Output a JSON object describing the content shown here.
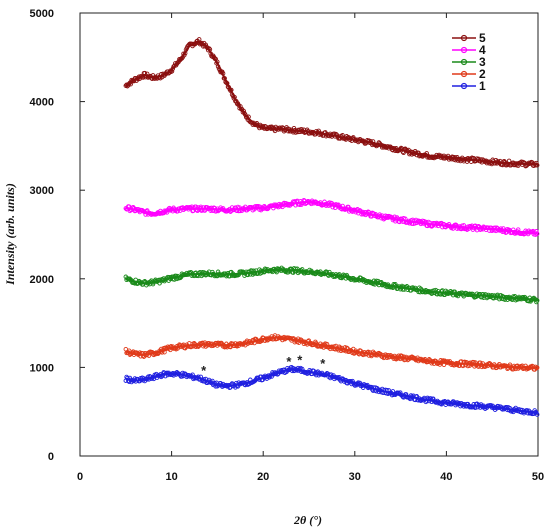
{
  "chart_data": {
    "type": "line",
    "title": "",
    "xlabel": "2θ (°)",
    "ylabel": "Intensity (arb. units)",
    "xlim": [
      0,
      50
    ],
    "ylim": [
      0,
      5000
    ],
    "x_ticks": [
      "0",
      "10",
      "20",
      "30",
      "40",
      "50"
    ],
    "y_ticks": [
      "0",
      "1000",
      "2000",
      "3000",
      "4000",
      "5000"
    ],
    "grid": false,
    "legend_position": "top-right",
    "series": [
      {
        "name": "5",
        "color": "#8b1010",
        "marker": "circle",
        "points": [
          [
            5,
            4180
          ],
          [
            6,
            4250
          ],
          [
            7,
            4300
          ],
          [
            8,
            4270
          ],
          [
            9,
            4290
          ],
          [
            10,
            4360
          ],
          [
            11,
            4480
          ],
          [
            12,
            4640
          ],
          [
            13,
            4680
          ],
          [
            14,
            4600
          ],
          [
            15,
            4430
          ],
          [
            16,
            4220
          ],
          [
            17,
            4020
          ],
          [
            18,
            3850
          ],
          [
            19,
            3750
          ],
          [
            20,
            3700
          ],
          [
            21,
            3690
          ],
          [
            22,
            3690
          ],
          [
            23,
            3680
          ],
          [
            24,
            3670
          ],
          [
            25,
            3660
          ],
          [
            26,
            3650
          ],
          [
            28,
            3610
          ],
          [
            30,
            3570
          ],
          [
            32,
            3530
          ],
          [
            34,
            3480
          ],
          [
            36,
            3430
          ],
          [
            38,
            3390
          ],
          [
            40,
            3370
          ],
          [
            42,
            3350
          ],
          [
            44,
            3330
          ],
          [
            46,
            3310
          ],
          [
            48,
            3300
          ],
          [
            50,
            3290
          ]
        ]
      },
      {
        "name": "4",
        "color": "#ff00ff",
        "marker": "circle",
        "points": [
          [
            5,
            2800
          ],
          [
            6,
            2780
          ],
          [
            7,
            2750
          ],
          [
            8,
            2740
          ],
          [
            9,
            2760
          ],
          [
            10,
            2780
          ],
          [
            12,
            2790
          ],
          [
            14,
            2790
          ],
          [
            16,
            2780
          ],
          [
            18,
            2790
          ],
          [
            20,
            2800
          ],
          [
            22,
            2830
          ],
          [
            24,
            2860
          ],
          [
            25,
            2870
          ],
          [
            26,
            2860
          ],
          [
            28,
            2820
          ],
          [
            30,
            2770
          ],
          [
            32,
            2720
          ],
          [
            34,
            2680
          ],
          [
            36,
            2650
          ],
          [
            38,
            2620
          ],
          [
            40,
            2600
          ],
          [
            42,
            2580
          ],
          [
            44,
            2570
          ],
          [
            46,
            2550
          ],
          [
            48,
            2530
          ],
          [
            50,
            2510
          ]
        ]
      },
      {
        "name": "3",
        "color": "#1a8a1a",
        "marker": "circle",
        "points": [
          [
            5,
            2000
          ],
          [
            6,
            1970
          ],
          [
            7,
            1950
          ],
          [
            8,
            1960
          ],
          [
            9,
            1980
          ],
          [
            10,
            2010
          ],
          [
            12,
            2050
          ],
          [
            14,
            2060
          ],
          [
            16,
            2050
          ],
          [
            18,
            2060
          ],
          [
            20,
            2090
          ],
          [
            21,
            2100
          ],
          [
            22,
            2100
          ],
          [
            24,
            2090
          ],
          [
            26,
            2070
          ],
          [
            28,
            2040
          ],
          [
            30,
            2000
          ],
          [
            32,
            1960
          ],
          [
            34,
            1920
          ],
          [
            36,
            1890
          ],
          [
            38,
            1860
          ],
          [
            40,
            1840
          ],
          [
            42,
            1820
          ],
          [
            44,
            1810
          ],
          [
            46,
            1790
          ],
          [
            48,
            1780
          ],
          [
            50,
            1760
          ]
        ]
      },
      {
        "name": "2",
        "color": "#e03a1a",
        "marker": "circle",
        "points": [
          [
            5,
            1180
          ],
          [
            6,
            1150
          ],
          [
            7,
            1140
          ],
          [
            8,
            1160
          ],
          [
            9,
            1190
          ],
          [
            10,
            1220
          ],
          [
            12,
            1250
          ],
          [
            14,
            1260
          ],
          [
            16,
            1250
          ],
          [
            18,
            1270
          ],
          [
            20,
            1320
          ],
          [
            21,
            1340
          ],
          [
            22,
            1330
          ],
          [
            24,
            1300
          ],
          [
            26,
            1260
          ],
          [
            28,
            1220
          ],
          [
            30,
            1180
          ],
          [
            32,
            1150
          ],
          [
            34,
            1120
          ],
          [
            36,
            1100
          ],
          [
            38,
            1070
          ],
          [
            40,
            1050
          ],
          [
            42,
            1040
          ],
          [
            44,
            1030
          ],
          [
            46,
            1010
          ],
          [
            48,
            1000
          ],
          [
            50,
            990
          ]
        ]
      },
      {
        "name": "1",
        "color": "#2020e0",
        "marker": "circle",
        "points": [
          [
            5,
            870
          ],
          [
            6,
            850
          ],
          [
            7,
            860
          ],
          [
            8,
            890
          ],
          [
            9,
            920
          ],
          [
            10,
            930
          ],
          [
            11,
            920
          ],
          [
            12,
            900
          ],
          [
            13,
            880
          ],
          [
            14,
            840
          ],
          [
            15,
            800
          ],
          [
            16,
            790
          ],
          [
            17,
            800
          ],
          [
            18,
            820
          ],
          [
            19,
            850
          ],
          [
            20,
            880
          ],
          [
            21,
            920
          ],
          [
            22,
            950
          ],
          [
            23,
            980
          ],
          [
            24,
            970
          ],
          [
            25,
            950
          ],
          [
            26,
            930
          ],
          [
            27,
            910
          ],
          [
            28,
            880
          ],
          [
            30,
            820
          ],
          [
            32,
            760
          ],
          [
            34,
            710
          ],
          [
            36,
            670
          ],
          [
            38,
            630
          ],
          [
            40,
            600
          ],
          [
            42,
            580
          ],
          [
            44,
            560
          ],
          [
            46,
            540
          ],
          [
            48,
            510
          ],
          [
            50,
            490
          ]
        ]
      }
    ],
    "annotations": [
      {
        "text": "*",
        "x": 13.5,
        "y": 960
      },
      {
        "text": "*",
        "x": 22.8,
        "y": 1060
      },
      {
        "text": "*",
        "x": 24,
        "y": 1080
      },
      {
        "text": "*",
        "x": 26.5,
        "y": 1040
      }
    ]
  }
}
